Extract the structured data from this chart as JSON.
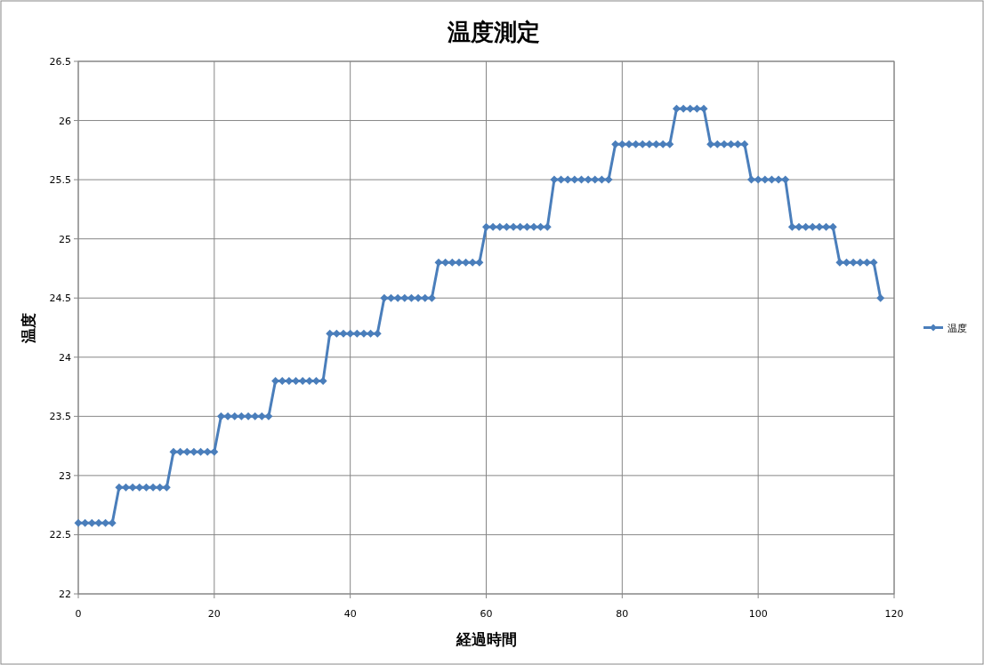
{
  "chart_data": {
    "type": "line",
    "title": "温度測定",
    "xlabel": "経過時間",
    "ylabel": "温度",
    "x": [
      0,
      1,
      2,
      3,
      4,
      5,
      6,
      7,
      8,
      9,
      10,
      11,
      12,
      13,
      14,
      15,
      16,
      17,
      18,
      19,
      20,
      21,
      22,
      23,
      24,
      25,
      26,
      27,
      28,
      29,
      30,
      31,
      32,
      33,
      34,
      35,
      36,
      37,
      38,
      39,
      40,
      41,
      42,
      43,
      44,
      45,
      46,
      47,
      48,
      49,
      50,
      51,
      52,
      53,
      54,
      55,
      56,
      57,
      58,
      59,
      60,
      61,
      62,
      63,
      64,
      65,
      66,
      67,
      68,
      69,
      70,
      71,
      72,
      73,
      74,
      75,
      76,
      77,
      78,
      79,
      80,
      81,
      82,
      83,
      84,
      85,
      86,
      87,
      88,
      89,
      90,
      91,
      92,
      93,
      94,
      95,
      96,
      97,
      98,
      99,
      100,
      101,
      102,
      103,
      104,
      105,
      106,
      107,
      108,
      109,
      110,
      111,
      112,
      113,
      114,
      115,
      116,
      117,
      118
    ],
    "series": [
      {
        "name": "温度",
        "color": "#4a7ebb",
        "values": [
          22.6,
          22.6,
          22.6,
          22.6,
          22.6,
          22.6,
          22.9,
          22.9,
          22.9,
          22.9,
          22.9,
          22.9,
          22.9,
          22.9,
          23.2,
          23.2,
          23.2,
          23.2,
          23.2,
          23.2,
          23.2,
          23.5,
          23.5,
          23.5,
          23.5,
          23.5,
          23.5,
          23.5,
          23.5,
          23.8,
          23.8,
          23.8,
          23.8,
          23.8,
          23.8,
          23.8,
          23.8,
          24.2,
          24.2,
          24.2,
          24.2,
          24.2,
          24.2,
          24.2,
          24.2,
          24.5,
          24.5,
          24.5,
          24.5,
          24.5,
          24.5,
          24.5,
          24.5,
          24.8,
          24.8,
          24.8,
          24.8,
          24.8,
          24.8,
          24.8,
          25.1,
          25.1,
          25.1,
          25.1,
          25.1,
          25.1,
          25.1,
          25.1,
          25.1,
          25.1,
          25.5,
          25.5,
          25.5,
          25.5,
          25.5,
          25.5,
          25.5,
          25.5,
          25.5,
          25.8,
          25.8,
          25.8,
          25.8,
          25.8,
          25.8,
          25.8,
          25.8,
          25.8,
          26.1,
          26.1,
          26.1,
          26.1,
          26.1,
          25.8,
          25.8,
          25.8,
          25.8,
          25.8,
          25.8,
          25.5,
          25.5,
          25.5,
          25.5,
          25.5,
          25.5,
          25.1,
          25.1,
          25.1,
          25.1,
          25.1,
          25.1,
          25.1,
          24.8,
          24.8,
          24.8,
          24.8,
          24.8,
          24.8,
          24.5
        ]
      }
    ],
    "xlim": [
      0,
      120
    ],
    "xticks": [
      0,
      20,
      40,
      60,
      80,
      100,
      120
    ],
    "ylim": [
      22,
      26.5
    ],
    "yticks": [
      22,
      22.5,
      23,
      23.5,
      24,
      24.5,
      25,
      25.5,
      26,
      26.5
    ],
    "grid": true,
    "legend": "right",
    "marker": "diamond",
    "line_style": "solid"
  }
}
